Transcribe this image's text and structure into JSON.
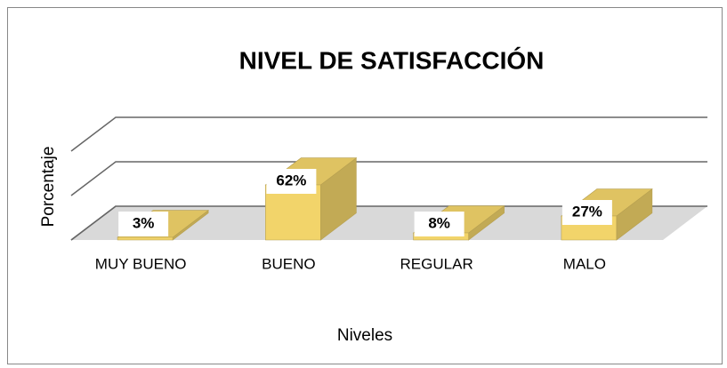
{
  "chart_data": {
    "type": "bar3d",
    "title": "NIVEL DE SATISFACCIÓN",
    "x_label": "Niveles",
    "y_label": "Porcentaje",
    "categories": [
      "MUY BUENO",
      "BUENO",
      "REGULAR",
      "MALO"
    ],
    "values": [
      3,
      62,
      8,
      27
    ],
    "value_labels": [
      "3%",
      "62%",
      "8%",
      "27%"
    ],
    "color": "#f2d46a",
    "ylim": [
      0,
      100
    ],
    "yticks": [
      0,
      50,
      100
    ],
    "grid": true
  }
}
